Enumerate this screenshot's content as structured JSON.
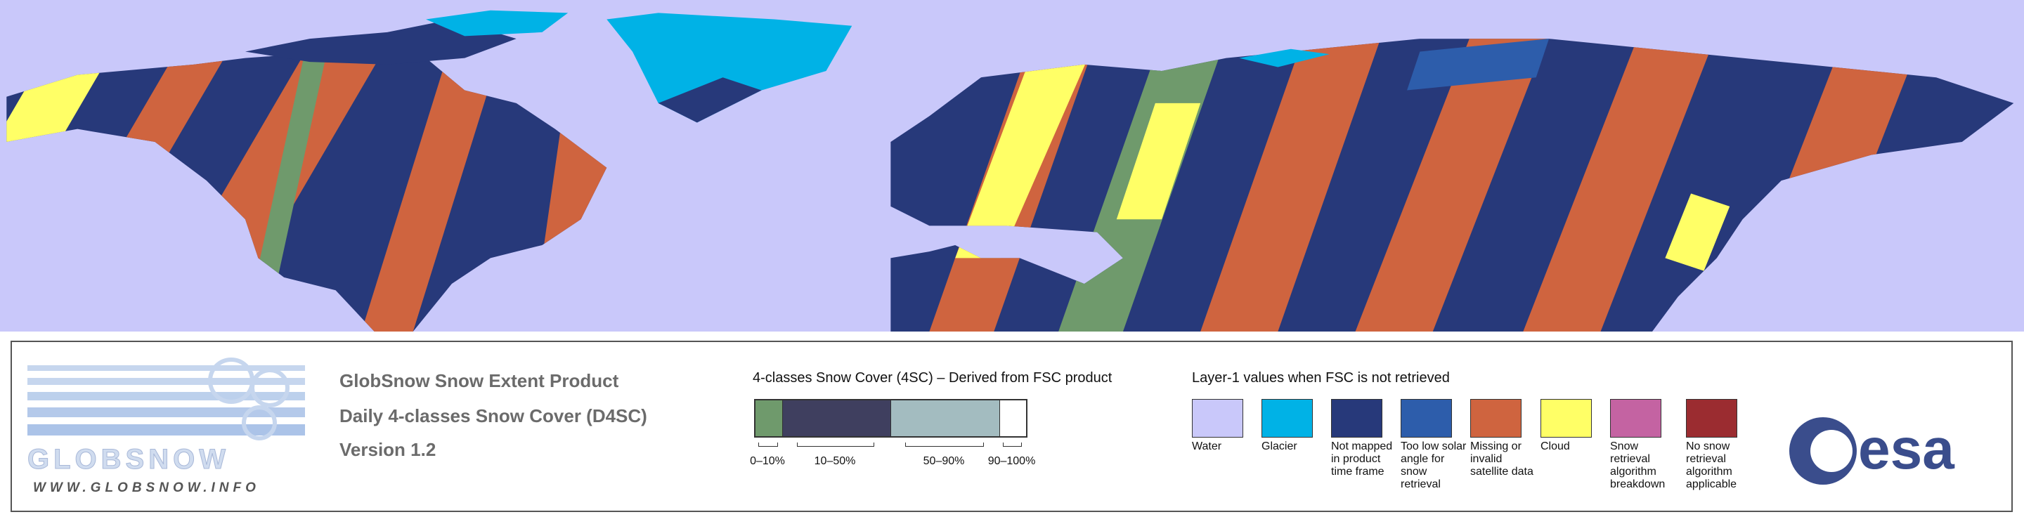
{
  "logo": {
    "text": "GLOBSNOW",
    "url": "WWW.GLOBSNOW.INFO"
  },
  "product": {
    "title": "GlobSnow Snow Extent Product",
    "subtitle": "Daily 4-classes Snow Cover (D4SC)",
    "version": "Version 1.2"
  },
  "snow_cover_legend": {
    "title": "4-classes Snow Cover (4SC) – Derived from FSC product",
    "classes": [
      {
        "label": "0–10%",
        "color": "#6f9a6c"
      },
      {
        "label": "10–50%",
        "color": "#3f3f5f"
      },
      {
        "label": "50–90%",
        "color": "#a3bcc0"
      },
      {
        "label": "90–100%",
        "color": "#ffffff"
      }
    ]
  },
  "layer1_legend": {
    "title": "Layer-1 values when FSC is not retrieved",
    "items": [
      {
        "label": "Water",
        "color": "#c9c8fa"
      },
      {
        "label": "Glacier",
        "color": "#00b2e6"
      },
      {
        "label": "Not mapped in product time frame",
        "color": "#27397a"
      },
      {
        "label": "Too low solar angle for snow retrieval",
        "color": "#2d5dab"
      },
      {
        "label": "Missing or invalid satellite data",
        "color": "#cf643f"
      },
      {
        "label": "Cloud",
        "color": "#ffff66"
      },
      {
        "label": "Snow retrieval algorithm breakdown",
        "color": "#c463a2"
      },
      {
        "label": "No snow retrieval algorithm applicable",
        "color": "#9b2c30"
      }
    ]
  },
  "esa": "esa"
}
